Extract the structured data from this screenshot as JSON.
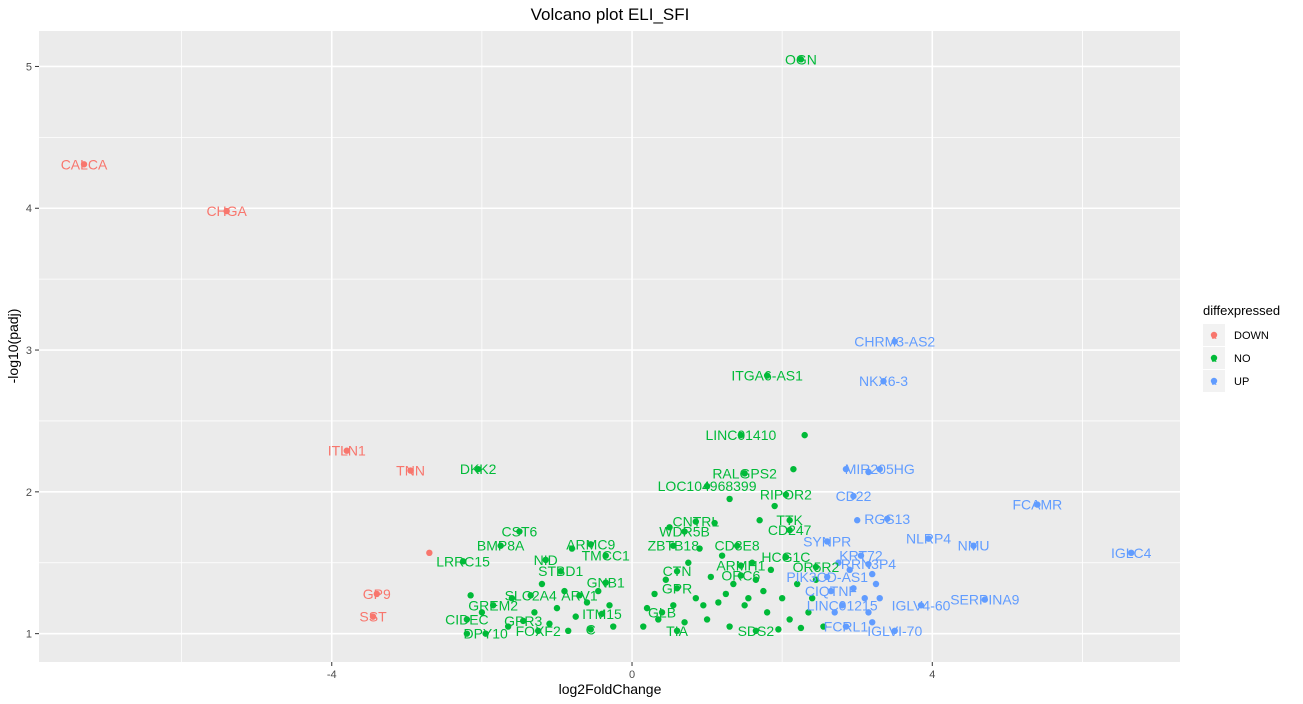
{
  "chart_data": {
    "type": "scatter",
    "title": "Volcano plot ELI_SFI",
    "xlabel": "log2FoldChange",
    "ylabel": "-log10(padj)",
    "xlim": [
      -7.9,
      7.3
    ],
    "ylim": [
      0.8,
      5.25
    ],
    "x_ticks": [
      -4,
      0,
      4
    ],
    "y_ticks": [
      1,
      2,
      3,
      4,
      5
    ],
    "grid": true,
    "legend_position": "right",
    "legend": {
      "title": "diffexpressed",
      "entries": [
        {
          "label": "DOWN",
          "color": "#F8766D"
        },
        {
          "label": "NO",
          "color": "#00BA38"
        },
        {
          "label": "UP",
          "color": "#619CFF"
        }
      ]
    },
    "series": [
      {
        "name": "DOWN",
        "color": "#F8766D",
        "points": [
          {
            "x": -7.3,
            "y": 4.31,
            "label": "CALCA"
          },
          {
            "x": -5.4,
            "y": 3.98,
            "label": "CHGA"
          },
          {
            "x": -3.8,
            "y": 2.29,
            "label": "ITLN1"
          },
          {
            "x": -2.95,
            "y": 2.15,
            "label": "TNN"
          },
          {
            "x": -2.7,
            "y": 1.57,
            "label": ""
          },
          {
            "x": -3.4,
            "y": 1.28,
            "label": "GP9"
          },
          {
            "x": -3.45,
            "y": 1.12,
            "label": "SST"
          }
        ]
      },
      {
        "name": "NO",
        "color": "#00BA38",
        "points": [
          {
            "x": 2.25,
            "y": 5.05,
            "label": "OGN"
          },
          {
            "x": 1.8,
            "y": 2.82,
            "label": "ITGA6-AS1"
          },
          {
            "x": 1.45,
            "y": 2.4,
            "label": "LINC01410"
          },
          {
            "x": 2.3,
            "y": 2.4,
            "label": ""
          },
          {
            "x": -2.05,
            "y": 2.16,
            "label": "DKK2"
          },
          {
            "x": 2.15,
            "y": 2.16,
            "label": ""
          },
          {
            "x": 1.5,
            "y": 2.13,
            "label": "RALGPS2"
          },
          {
            "x": 1.0,
            "y": 2.04,
            "label": "LOC104968399"
          },
          {
            "x": 2.05,
            "y": 1.98,
            "label": "RIPOR2"
          },
          {
            "x": 0.85,
            "y": 1.79,
            "label": "CNTRL"
          },
          {
            "x": 0.7,
            "y": 1.72,
            "label": "WDR5B"
          },
          {
            "x": 2.1,
            "y": 1.8,
            "label": "TTK"
          },
          {
            "x": 2.1,
            "y": 1.73,
            "label": "CD247"
          },
          {
            "x": -1.5,
            "y": 1.72,
            "label": "CST6"
          },
          {
            "x": -1.75,
            "y": 1.62,
            "label": "BMP8A"
          },
          {
            "x": -0.55,
            "y": 1.63,
            "label": "ARMC9"
          },
          {
            "x": 0.55,
            "y": 1.62,
            "label": "ZBTB18"
          },
          {
            "x": 1.4,
            "y": 1.62,
            "label": "CD3E8"
          },
          {
            "x": -0.35,
            "y": 1.55,
            "label": "TMCC1"
          },
          {
            "x": -1.15,
            "y": 1.52,
            "label": "NID"
          },
          {
            "x": 2.05,
            "y": 1.54,
            "label": "HCG1C"
          },
          {
            "x": -2.25,
            "y": 1.51,
            "label": "LRRC15"
          },
          {
            "x": 1.45,
            "y": 1.48,
            "label": "ARMH1"
          },
          {
            "x": 2.45,
            "y": 1.47,
            "label": "OR5R2"
          },
          {
            "x": -0.95,
            "y": 1.44,
            "label": "STBD1"
          },
          {
            "x": 0.6,
            "y": 1.44,
            "label": "CTN"
          },
          {
            "x": 1.45,
            "y": 1.41,
            "label": "ORC6"
          },
          {
            "x": -0.35,
            "y": 1.36,
            "label": "GNB1"
          },
          {
            "x": -1.35,
            "y": 1.27,
            "label": "SLC2A4"
          },
          {
            "x": -0.7,
            "y": 1.27,
            "label": "ARV1"
          },
          {
            "x": 0.6,
            "y": 1.32,
            "label": "GPR"
          },
          {
            "x": -1.85,
            "y": 1.2,
            "label": "GREM2"
          },
          {
            "x": -0.4,
            "y": 1.14,
            "label": "ITM15"
          },
          {
            "x": 0.4,
            "y": 1.15,
            "label": "GLB"
          },
          {
            "x": -2.2,
            "y": 1.1,
            "label": "CIDEC"
          },
          {
            "x": -1.45,
            "y": 1.09,
            "label": "GPR3"
          },
          {
            "x": -1.95,
            "y": 1.0,
            "label": "DPY10"
          },
          {
            "x": -1.25,
            "y": 1.02,
            "label": "FOXF2"
          },
          {
            "x": -0.55,
            "y": 1.03,
            "label": "C"
          },
          {
            "x": 0.6,
            "y": 1.02,
            "label": "TIA"
          },
          {
            "x": 1.65,
            "y": 1.02,
            "label": "SDS2"
          },
          {
            "x": 0.5,
            "y": 1.75,
            "label": ""
          },
          {
            "x": 1.1,
            "y": 1.78,
            "label": ""
          },
          {
            "x": 1.7,
            "y": 1.8,
            "label": ""
          },
          {
            "x": 1.9,
            "y": 1.9,
            "label": ""
          },
          {
            "x": 1.3,
            "y": 1.95,
            "label": ""
          },
          {
            "x": 0.9,
            "y": 1.6,
            "label": ""
          },
          {
            "x": 1.2,
            "y": 1.55,
            "label": ""
          },
          {
            "x": 1.6,
            "y": 1.5,
            "label": ""
          },
          {
            "x": 1.85,
            "y": 1.45,
            "label": ""
          },
          {
            "x": 0.75,
            "y": 1.5,
            "label": ""
          },
          {
            "x": 0.45,
            "y": 1.38,
            "label": ""
          },
          {
            "x": 1.05,
            "y": 1.4,
            "label": ""
          },
          {
            "x": 1.35,
            "y": 1.35,
            "label": ""
          },
          {
            "x": 1.75,
            "y": 1.3,
            "label": ""
          },
          {
            "x": 2.0,
            "y": 1.25,
            "label": ""
          },
          {
            "x": 2.2,
            "y": 1.35,
            "label": ""
          },
          {
            "x": 0.3,
            "y": 1.28,
            "label": ""
          },
          {
            "x": 0.85,
            "y": 1.25,
            "label": ""
          },
          {
            "x": 1.15,
            "y": 1.22,
            "label": ""
          },
          {
            "x": 1.5,
            "y": 1.2,
            "label": ""
          },
          {
            "x": 1.8,
            "y": 1.15,
            "label": ""
          },
          {
            "x": 2.1,
            "y": 1.1,
            "label": ""
          },
          {
            "x": 2.35,
            "y": 1.15,
            "label": ""
          },
          {
            "x": 0.35,
            "y": 1.1,
            "label": ""
          },
          {
            "x": 0.7,
            "y": 1.08,
            "label": ""
          },
          {
            "x": 1.0,
            "y": 1.1,
            "label": ""
          },
          {
            "x": 1.3,
            "y": 1.05,
            "label": ""
          },
          {
            "x": 1.95,
            "y": 1.03,
            "label": ""
          },
          {
            "x": 2.25,
            "y": 1.04,
            "label": ""
          },
          {
            "x": 0.95,
            "y": 1.2,
            "label": ""
          },
          {
            "x": 1.25,
            "y": 1.28,
            "label": ""
          },
          {
            "x": 1.55,
            "y": 1.25,
            "label": ""
          },
          {
            "x": 1.65,
            "y": 1.38,
            "label": ""
          },
          {
            "x": 0.55,
            "y": 1.2,
            "label": ""
          },
          {
            "x": 0.2,
            "y": 1.18,
            "label": ""
          },
          {
            "x": 0.15,
            "y": 1.05,
            "label": ""
          },
          {
            "x": 2.4,
            "y": 1.25,
            "label": ""
          },
          {
            "x": 2.55,
            "y": 1.05,
            "label": ""
          },
          {
            "x": 2.45,
            "y": 1.38,
            "label": ""
          },
          {
            "x": -0.8,
            "y": 1.6,
            "label": ""
          },
          {
            "x": -0.9,
            "y": 1.3,
            "label": ""
          },
          {
            "x": -1.0,
            "y": 1.18,
            "label": ""
          },
          {
            "x": -0.75,
            "y": 1.12,
            "label": ""
          },
          {
            "x": -0.6,
            "y": 1.22,
            "label": ""
          },
          {
            "x": -0.45,
            "y": 1.3,
            "label": ""
          },
          {
            "x": -0.3,
            "y": 1.2,
            "label": ""
          },
          {
            "x": -1.1,
            "y": 1.07,
            "label": ""
          },
          {
            "x": -1.3,
            "y": 1.15,
            "label": ""
          },
          {
            "x": -1.6,
            "y": 1.25,
            "label": ""
          },
          {
            "x": -1.65,
            "y": 1.05,
            "label": ""
          },
          {
            "x": -2.15,
            "y": 1.27,
            "label": ""
          },
          {
            "x": -2.0,
            "y": 1.15,
            "label": ""
          },
          {
            "x": -2.2,
            "y": 1.0,
            "label": ""
          },
          {
            "x": -1.2,
            "y": 1.35,
            "label": ""
          },
          {
            "x": -0.85,
            "y": 1.02,
            "label": ""
          },
          {
            "x": -0.25,
            "y": 1.05,
            "label": ""
          }
        ]
      },
      {
        "name": "UP",
        "color": "#619CFF",
        "points": [
          {
            "x": 3.5,
            "y": 3.06,
            "label": "CHRM3-AS2"
          },
          {
            "x": 3.35,
            "y": 2.78,
            "label": "NKX6-3"
          },
          {
            "x": 3.3,
            "y": 2.16,
            "label": "MIR205HG"
          },
          {
            "x": 2.85,
            "y": 2.16,
            "label": ""
          },
          {
            "x": 3.15,
            "y": 2.14,
            "label": ""
          },
          {
            "x": 2.95,
            "y": 1.97,
            "label": "CD22"
          },
          {
            "x": 5.4,
            "y": 1.91,
            "label": "FCAMR"
          },
          {
            "x": 3.4,
            "y": 1.81,
            "label": "RGS13"
          },
          {
            "x": 3.0,
            "y": 1.8,
            "label": ""
          },
          {
            "x": 2.6,
            "y": 1.65,
            "label": "SYNPR"
          },
          {
            "x": 3.95,
            "y": 1.67,
            "label": "NLRP4"
          },
          {
            "x": 4.55,
            "y": 1.62,
            "label": "NMU"
          },
          {
            "x": 3.05,
            "y": 1.55,
            "label": "KRT72"
          },
          {
            "x": 6.65,
            "y": 1.57,
            "label": "IGLC4"
          },
          {
            "x": 3.15,
            "y": 1.49,
            "label": "RRN3P4"
          },
          {
            "x": 2.6,
            "y": 1.4,
            "label": "PIK3CD-AS1"
          },
          {
            "x": 2.65,
            "y": 1.3,
            "label": "CIQTNF"
          },
          {
            "x": 4.7,
            "y": 1.24,
            "label": "SERPINA9"
          },
          {
            "x": 2.8,
            "y": 1.2,
            "label": "LINC01215"
          },
          {
            "x": 3.85,
            "y": 1.2,
            "label": "IGLV4-60"
          },
          {
            "x": 2.85,
            "y": 1.05,
            "label": "FCRL1"
          },
          {
            "x": 3.5,
            "y": 1.02,
            "label": "IGLVI-70"
          },
          {
            "x": 3.2,
            "y": 1.42,
            "label": ""
          },
          {
            "x": 3.25,
            "y": 1.35,
            "label": ""
          },
          {
            "x": 3.1,
            "y": 1.25,
            "label": ""
          },
          {
            "x": 3.3,
            "y": 1.25,
            "label": ""
          },
          {
            "x": 3.15,
            "y": 1.15,
            "label": ""
          },
          {
            "x": 2.95,
            "y": 1.32,
            "label": ""
          },
          {
            "x": 2.9,
            "y": 1.45,
            "label": ""
          },
          {
            "x": 3.2,
            "y": 1.08,
            "label": ""
          },
          {
            "x": 2.7,
            "y": 1.15,
            "label": ""
          },
          {
            "x": 2.75,
            "y": 1.5,
            "label": ""
          }
        ]
      }
    ]
  }
}
